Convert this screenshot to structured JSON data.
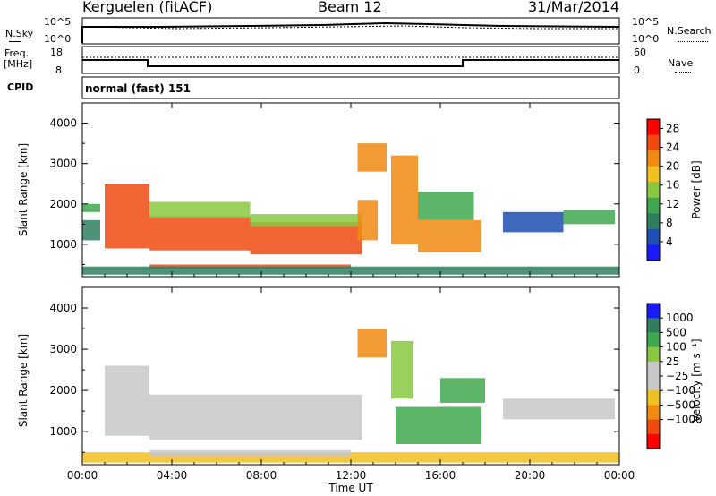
{
  "header": {
    "station": "Kerguelen (fitACF)",
    "beam": "Beam 12",
    "date": "31/Mar/2014"
  },
  "panels": {
    "nsky": {
      "label": "N.Sky",
      "ticks_left": [
        "10^5",
        "10^0"
      ]
    },
    "nsearch": {
      "label": "N.Search",
      "ticks_right": [
        "10^5",
        "10^0"
      ]
    },
    "freq": {
      "label": "Freq.",
      "unit": "[MHz]",
      "ticks_left": [
        "18",
        "8"
      ]
    },
    "nave": {
      "label": "Nave",
      "ticks_right": [
        "60",
        "0"
      ]
    },
    "cpid": {
      "label": "CPID",
      "value": "normal (fast) 151"
    }
  },
  "colors": {
    "power": [
      "#1a1aff",
      "#1f4fb0",
      "#2f7f5f",
      "#3fa84f",
      "#88c840",
      "#f0c020",
      "#f08a10",
      "#f04a10",
      "#ff0000"
    ],
    "velocity": [
      "#ff0000",
      "#f04a10",
      "#f08a10",
      "#f0c020",
      "#c8c8c8",
      "#c8c8c8",
      "#88c840",
      "#3fa84f",
      "#2f7f5f",
      "#1a1aff"
    ],
    "ground_scatter": "#c8c8c8"
  },
  "chart_data": [
    {
      "type": "heatmap",
      "ylabel": "Slant Range [km]",
      "xlabel": "",
      "x_ticks": [
        "00:00",
        "04:00",
        "08:00",
        "12:00",
        "16:00",
        "20:00",
        "00:00"
      ],
      "y_ticks": [
        "1000",
        "2000",
        "3000",
        "4000"
      ],
      "xlim_hours": [
        0,
        24
      ],
      "ylim_km": [
        200,
        4500
      ],
      "colorbar": {
        "label": "Power [dB]",
        "ticks": [
          "4",
          "8",
          "12",
          "16",
          "20",
          "24",
          "28"
        ],
        "range": [
          0,
          30
        ]
      },
      "regions": [
        {
          "t": [
            1.0,
            3.0
          ],
          "r": [
            900,
            2500
          ],
          "value": 24
        },
        {
          "t": [
            3.0,
            7.5
          ],
          "r": [
            850,
            1700
          ],
          "value": 26
        },
        {
          "t": [
            3.0,
            7.5
          ],
          "r": [
            1650,
            2050
          ],
          "value": 14
        },
        {
          "t": [
            7.5,
            12.5
          ],
          "r": [
            750,
            1550
          ],
          "value": 26
        },
        {
          "t": [
            7.5,
            12.5
          ],
          "r": [
            1450,
            1750
          ],
          "value": 14
        },
        {
          "t": [
            12.3,
            13.2
          ],
          "r": [
            1100,
            2100
          ],
          "value": 22
        },
        {
          "t": [
            12.3,
            13.6
          ],
          "r": [
            2800,
            3500
          ],
          "value": 22
        },
        {
          "t": [
            13.8,
            15.0
          ],
          "r": [
            1000,
            3200
          ],
          "value": 20
        },
        {
          "t": [
            15.0,
            17.8
          ],
          "r": [
            800,
            1600
          ],
          "value": 22
        },
        {
          "t": [
            15.0,
            17.5
          ],
          "r": [
            1600,
            2300
          ],
          "value": 12
        },
        {
          "t": [
            18.8,
            21.5
          ],
          "r": [
            1300,
            1800
          ],
          "value": 6
        },
        {
          "t": [
            21.5,
            23.8
          ],
          "r": [
            1500,
            1850
          ],
          "value": 10
        },
        {
          "t": [
            0.0,
            0.8
          ],
          "r": [
            1100,
            1600
          ],
          "value": 8
        },
        {
          "t": [
            0.0,
            0.8
          ],
          "r": [
            1800,
            2000
          ],
          "value": 12
        },
        {
          "t": [
            3.0,
            12.0
          ],
          "r": [
            400,
            500
          ],
          "value": 24
        },
        {
          "t": [
            0.0,
            24.0
          ],
          "r": [
            250,
            450
          ],
          "value": 8
        }
      ]
    },
    {
      "type": "heatmap",
      "ylabel": "Slant Range [km]",
      "xlabel": "Time UT",
      "x_ticks": [
        "00:00",
        "04:00",
        "08:00",
        "12:00",
        "16:00",
        "20:00",
        "00:00"
      ],
      "y_ticks": [
        "1000",
        "2000",
        "3000",
        "4000"
      ],
      "xlim_hours": [
        0,
        24
      ],
      "ylim_km": [
        200,
        4500
      ],
      "colorbar": {
        "label": "Velocity [m s⁻¹]",
        "ticks": [
          "1000",
          "500",
          "100",
          "25",
          "−25",
          "−100",
          "−500",
          "−1000"
        ]
      },
      "regions": [
        {
          "t": [
            1.0,
            3.0
          ],
          "r": [
            900,
            2600
          ],
          "value": 0
        },
        {
          "t": [
            3.0,
            12.5
          ],
          "r": [
            800,
            1900
          ],
          "value": 0
        },
        {
          "t": [
            12.3,
            13.6
          ],
          "r": [
            2800,
            3500
          ],
          "value": -300
        },
        {
          "t": [
            13.8,
            14.8
          ],
          "r": [
            1800,
            3200
          ],
          "value": 50
        },
        {
          "t": [
            14.0,
            17.8
          ],
          "r": [
            700,
            1600
          ],
          "value": 150
        },
        {
          "t": [
            16.0,
            18.0
          ],
          "r": [
            1700,
            2300
          ],
          "value": 200
        },
        {
          "t": [
            18.8,
            23.8
          ],
          "r": [
            1300,
            1800
          ],
          "value": 0
        },
        {
          "t": [
            0.0,
            24.0
          ],
          "r": [
            250,
            500
          ],
          "value": -50
        },
        {
          "t": [
            3.0,
            12.0
          ],
          "r": [
            400,
            550
          ],
          "value": 0
        }
      ]
    }
  ]
}
